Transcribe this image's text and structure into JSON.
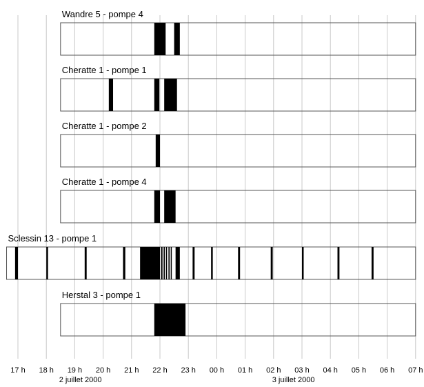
{
  "chart_data": {
    "type": "timeline",
    "x_unit": "hour of day",
    "x_ticks": [
      "17 h",
      "18 h",
      "19 h",
      "20 h",
      "21 h",
      "22 h",
      "23 h",
      "00 h",
      "01 h",
      "02 h",
      "03 h",
      "04 h",
      "05 h",
      "06 h",
      "07 h"
    ],
    "x_range": [
      17,
      31
    ],
    "date_labels": [
      {
        "text": "2 juillet 2000",
        "at_hour": 19.2
      },
      {
        "text": "3 juillet 2000",
        "at_hour": 26.7
      }
    ],
    "grid": true,
    "series": [
      {
        "name": "Wandre 5 - pompe 4",
        "range": [
          18.5,
          31
        ],
        "intervals": [
          [
            21.8,
            22.2
          ],
          [
            22.5,
            22.7
          ]
        ]
      },
      {
        "name": "Cheratte 1 - pompe 1",
        "range": [
          18.5,
          31
        ],
        "intervals": [
          [
            20.2,
            20.35
          ],
          [
            21.8,
            21.98
          ],
          [
            22.15,
            22.6
          ]
        ]
      },
      {
        "name": "Cheratte 1 - pompe 2",
        "range": [
          18.5,
          31
        ],
        "intervals": [
          [
            21.85,
            22.0
          ]
        ]
      },
      {
        "name": "Cheratte 1 - pompe 4",
        "range": [
          18.5,
          31
        ],
        "intervals": [
          [
            21.8,
            22.0
          ],
          [
            22.15,
            22.55
          ]
        ]
      },
      {
        "name": "Sclessin 13 - pompe 1",
        "range": [
          16.6,
          31
        ],
        "intervals": [
          [
            16.9,
            17.0
          ],
          [
            18.0,
            18.06
          ],
          [
            19.35,
            19.42
          ],
          [
            20.7,
            20.78
          ],
          [
            21.3,
            22.0
          ],
          [
            22.04,
            22.09
          ],
          [
            22.13,
            22.17
          ],
          [
            22.21,
            22.25
          ],
          [
            22.3,
            22.34
          ],
          [
            22.38,
            22.41
          ],
          [
            22.55,
            22.7
          ],
          [
            23.15,
            23.22
          ],
          [
            23.8,
            23.86
          ],
          [
            24.75,
            24.82
          ],
          [
            25.9,
            25.97
          ],
          [
            27.0,
            27.06
          ],
          [
            28.25,
            28.32
          ],
          [
            29.45,
            29.52
          ]
        ]
      },
      {
        "name": "Herstal 3 - pompe 1",
        "range": [
          18.5,
          31
        ],
        "intervals": [
          [
            21.8,
            22.9
          ]
        ]
      }
    ]
  }
}
